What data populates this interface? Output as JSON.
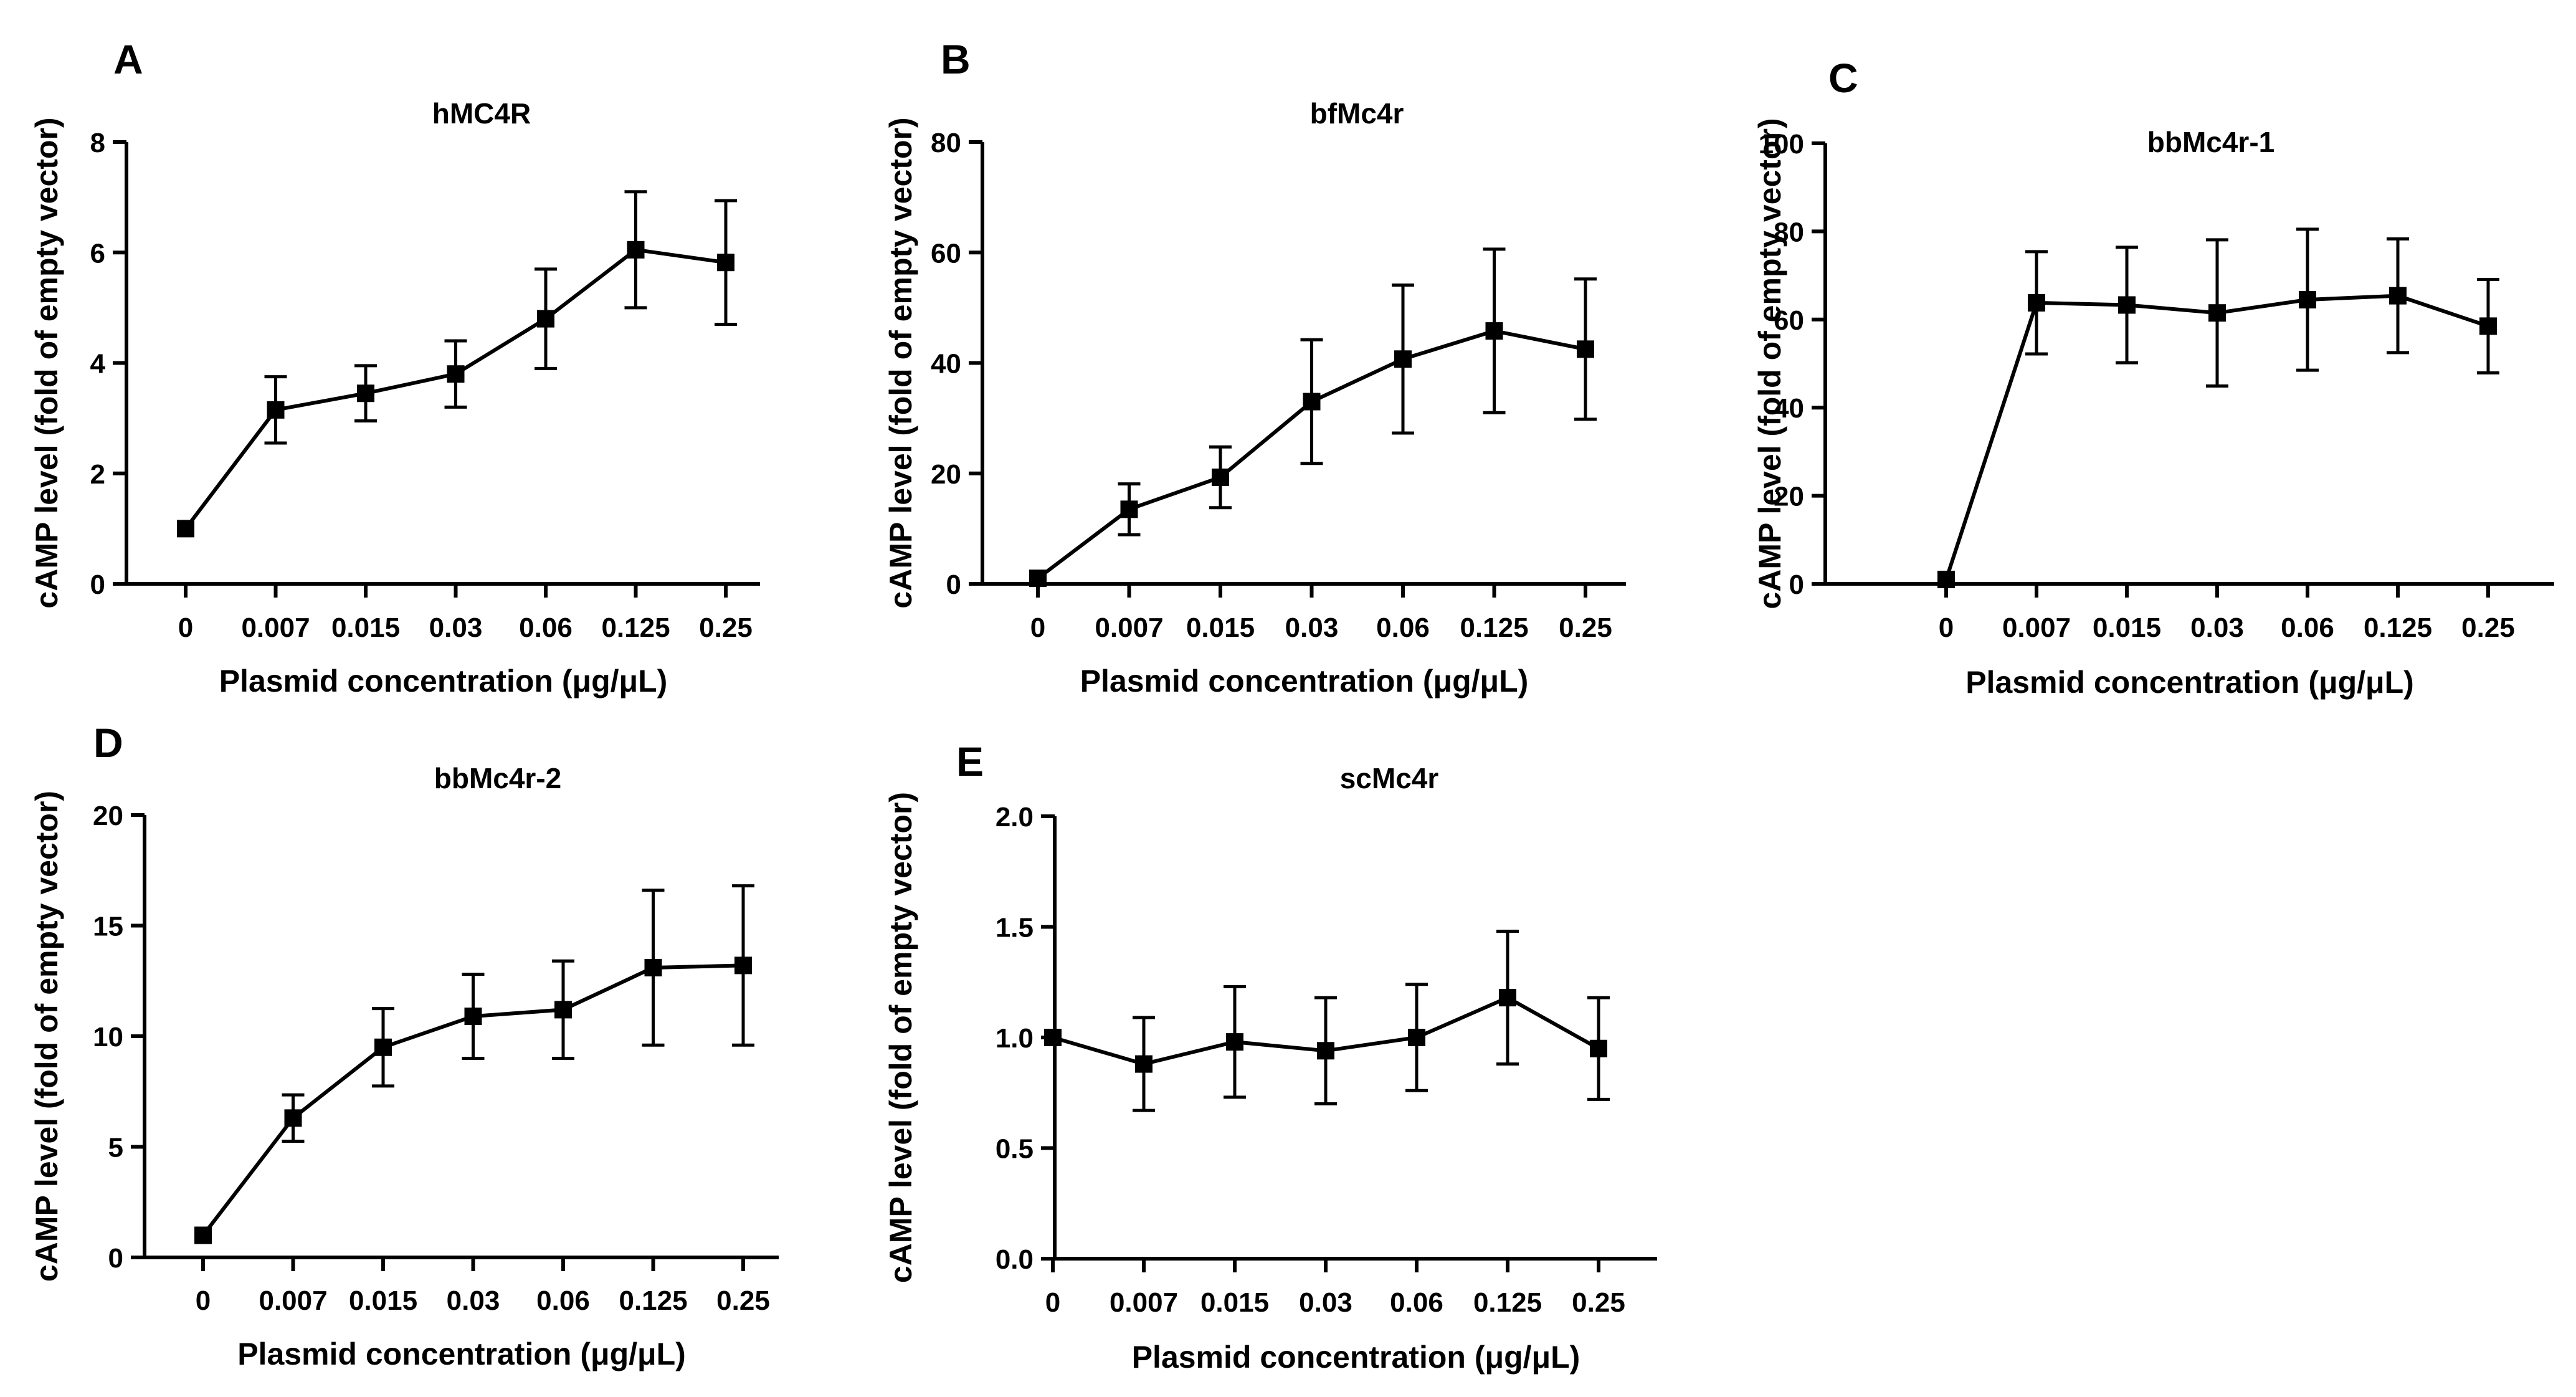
{
  "figure": {
    "x_axis_label": "Plasmid concentration (μg/μL)",
    "y_axis_label": "cAMP level (fold of empty vector)"
  },
  "chart_data": [
    {
      "panel": "A",
      "type": "line",
      "title": "hMC4R",
      "categories": [
        "0",
        "0.007",
        "0.015",
        "0.03",
        "0.06",
        "0.125",
        "0.25"
      ],
      "values": [
        1.0,
        3.15,
        3.45,
        3.8,
        4.8,
        6.05,
        5.82
      ],
      "errors": [
        0,
        0.6,
        0.5,
        0.6,
        0.9,
        1.05,
        1.12
      ],
      "ylim": [
        0,
        8
      ],
      "yticks": [
        0,
        2,
        4,
        6,
        8
      ],
      "ytick_labels": [
        "0",
        "2",
        "4",
        "6",
        "8"
      ],
      "xlabel": "Plasmid concentration (μg/μL)",
      "ylabel": "cAMP level (fold of empty vector)"
    },
    {
      "panel": "B",
      "type": "line",
      "title": "bfMc4r",
      "categories": [
        "0",
        "0.007",
        "0.015",
        "0.03",
        "0.06",
        "0.125",
        "0.25"
      ],
      "values": [
        1.0,
        13.5,
        19.3,
        33.0,
        40.7,
        45.8,
        42.5
      ],
      "errors": [
        0,
        4.6,
        5.5,
        11.2,
        13.4,
        14.8,
        12.7
      ],
      "ylim": [
        0,
        80
      ],
      "yticks": [
        0,
        20,
        40,
        60,
        80
      ],
      "ytick_labels": [
        "0",
        "20",
        "40",
        "60",
        "80"
      ],
      "xlabel": "Plasmid concentration (μg/μL)",
      "ylabel": "cAMP level (fold of empty vector)"
    },
    {
      "panel": "C",
      "type": "line",
      "title": "bbMc4r-1",
      "categories": [
        "0",
        "0.007",
        "0.015",
        "0.03",
        "0.06",
        "0.125",
        "0.25"
      ],
      "values": [
        1.0,
        63.8,
        63.3,
        61.5,
        64.5,
        65.4,
        58.5
      ],
      "errors": [
        0,
        11.6,
        13.1,
        16.6,
        16.0,
        12.9,
        10.6
      ],
      "ylim": [
        0,
        100
      ],
      "yticks": [
        0,
        20,
        40,
        60,
        80,
        100
      ],
      "ytick_labels": [
        "0",
        "20",
        "40",
        "60",
        "80",
        "100"
      ],
      "xlabel": "Plasmid concentration (μg/μL)",
      "ylabel": "cAMP level (fold of empty vector)"
    },
    {
      "panel": "D",
      "type": "line",
      "title": "bbMc4r-2",
      "categories": [
        "0",
        "0.007",
        "0.015",
        "0.03",
        "0.06",
        "0.125",
        "0.25"
      ],
      "values": [
        1.0,
        6.3,
        9.5,
        10.9,
        11.2,
        13.1,
        13.2
      ],
      "errors": [
        0,
        1.05,
        1.75,
        1.9,
        2.2,
        3.5,
        3.6
      ],
      "ylim": [
        0,
        20
      ],
      "yticks": [
        0,
        5,
        10,
        15,
        20
      ],
      "ytick_labels": [
        "0",
        "5",
        "10",
        "15",
        "20"
      ],
      "xlabel": "Plasmid concentration (μg/μL)",
      "ylabel": "cAMP level (fold of empty vector)"
    },
    {
      "panel": "E",
      "type": "line",
      "title": "scMc4r",
      "categories": [
        "0",
        "0.007",
        "0.015",
        "0.03",
        "0.06",
        "0.125",
        "0.25"
      ],
      "values": [
        1.0,
        0.88,
        0.98,
        0.94,
        1.0,
        1.18,
        0.95
      ],
      "errors": [
        0,
        0.21,
        0.25,
        0.24,
        0.24,
        0.3,
        0.23
      ],
      "ylim": [
        0,
        2.0
      ],
      "yticks": [
        0,
        0.5,
        1.0,
        1.5,
        2.0
      ],
      "ytick_labels": [
        "0.0",
        "0.5",
        "1.0",
        "1.5",
        "2.0"
      ],
      "xlabel": "Plasmid concentration (μg/μL)",
      "ylabel": "cAMP level (fold of empty vector)"
    }
  ]
}
